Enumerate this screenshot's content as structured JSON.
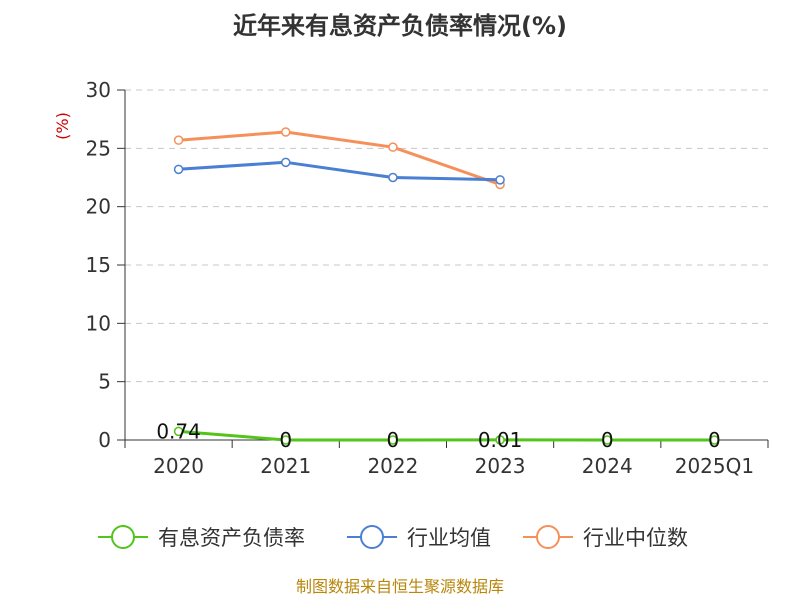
{
  "chart_data": {
    "type": "line",
    "title": "近年来有息资产负债率情况(%)",
    "ylabel": "(%)",
    "categories": [
      "2020",
      "2021",
      "2022",
      "2023",
      "2024",
      "2025Q1"
    ],
    "ylim": [
      0,
      30
    ],
    "yticks": [
      0,
      5,
      10,
      15,
      20,
      25,
      30
    ],
    "grid": true,
    "legend_position": "bottom",
    "series": [
      {
        "name": "有息资产负债率",
        "color": "#52c41a",
        "values": [
          0.74,
          0,
          0,
          0.01,
          0,
          0
        ],
        "labels": [
          "0.74",
          "0",
          "0",
          "0.01",
          "0",
          "0"
        ]
      },
      {
        "name": "行业均值",
        "color": "#4a7fd4",
        "values": [
          23.2,
          23.8,
          22.5,
          22.3,
          null,
          null
        ]
      },
      {
        "name": "行业中位数",
        "color": "#f5905a",
        "values": [
          25.7,
          26.4,
          25.1,
          21.9,
          null,
          null
        ]
      }
    ],
    "source": "制图数据来自恒生聚源数据库"
  }
}
